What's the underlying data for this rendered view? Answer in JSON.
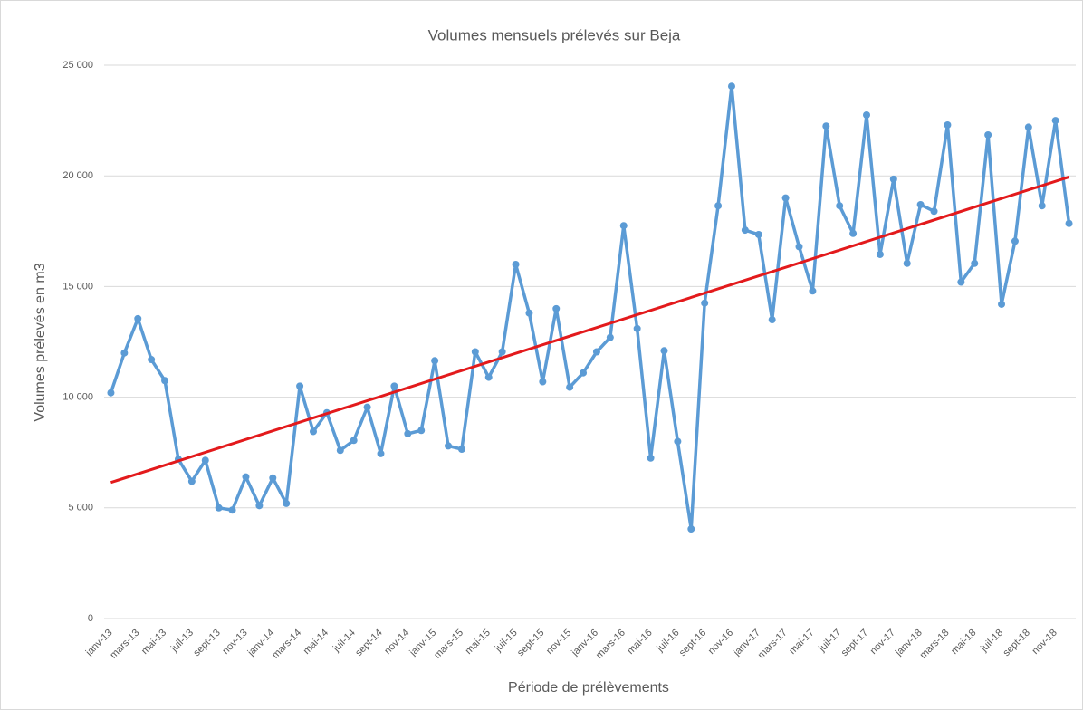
{
  "chart_data": {
    "type": "line",
    "title": "Volumes mensuels prélevés sur Beja",
    "x_label": "Période de prélèvements",
    "y_label": "Volumes prélevés en m3",
    "categories": [
      "janv-13",
      null,
      "mars-13",
      null,
      "mai-13",
      null,
      "juil-13",
      null,
      "sept-13",
      null,
      "nov-13",
      null,
      "janv-14",
      null,
      "mars-14",
      null,
      "mai-14",
      null,
      "juil-14",
      null,
      "sept-14",
      null,
      "nov-14",
      null,
      "janv-15",
      null,
      "mars-15",
      null,
      "mai-15",
      null,
      "juil-15",
      null,
      "sept-15",
      null,
      "nov-15",
      null,
      "janv-16",
      null,
      "mars-16",
      null,
      "mai-16",
      null,
      "juil-16",
      null,
      "sept-16",
      null,
      "nov-16",
      null,
      "janv-17",
      null,
      "mars-17",
      null,
      "mai-17",
      null,
      "juil-17",
      null,
      "sept-17",
      null,
      "nov-17",
      null,
      "janv-18",
      null,
      "mars-18",
      null,
      "mai-18",
      null,
      "juil-18",
      null,
      "sept-18",
      null,
      "nov-18",
      null
    ],
    "series": [
      {
        "color": "#5b9bd5",
        "values": [
          10200,
          12000,
          13550,
          11700,
          10750,
          7200,
          6200,
          7150,
          5000,
          4900,
          6400,
          5100,
          6350,
          5200,
          10500,
          8450,
          9300,
          7600,
          8050,
          9550,
          7450,
          10500,
          8350,
          8500,
          11650,
          7800,
          7650,
          12050,
          10900,
          12050,
          16000,
          13800,
          10700,
          14000,
          10450,
          11100,
          12050,
          12700,
          17750,
          13100,
          7250,
          12100,
          8000,
          4050,
          14250,
          18650,
          24050,
          17550,
          17350,
          13500,
          19000,
          16800,
          14800,
          22250,
          18650,
          17400,
          22750,
          16450,
          19850,
          16050,
          18700,
          18400,
          22300,
          15200,
          16050,
          21850,
          14200,
          17050,
          22200,
          18650,
          22500,
          17850
        ]
      }
    ],
    "trendline": {
      "color": "#e31a1c",
      "values": [
        6150,
        19950
      ]
    },
    "ylim": [
      0,
      25000
    ],
    "yticks": [
      0,
      {
        "value": 5000,
        "label": "5 000"
      },
      {
        "value": 10000,
        "label": "10 000"
      },
      {
        "value": 15000,
        "label": "15 000"
      },
      {
        "value": 20000,
        "label": "20 000"
      },
      {
        "value": 25000,
        "label": "25 000"
      }
    ],
    "grid": true
  }
}
